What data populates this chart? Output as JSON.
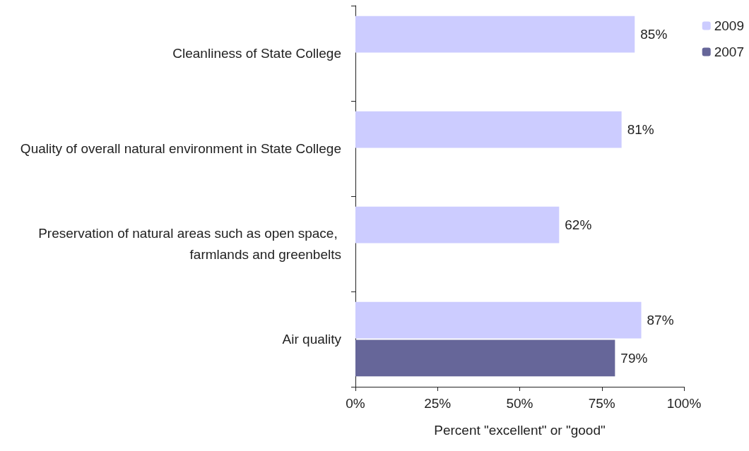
{
  "chart_data": {
    "type": "bar",
    "orientation": "horizontal",
    "xlabel": "Percent \"excellent\" or \"good\"",
    "categories": [
      "Cleanliness of State College",
      "Quality of overall natural environment in State College",
      "Preservation of natural areas such as open space, farmlands and greenbelts",
      "Air quality"
    ],
    "series": [
      {
        "name": "2009",
        "color": "#ccccff",
        "values": [
          85,
          81,
          62,
          87
        ],
        "value_labels": [
          "85%",
          "81%",
          "62%",
          "87%"
        ]
      },
      {
        "name": "2007",
        "color": "#666699",
        "values": [
          null,
          null,
          null,
          79
        ],
        "value_labels": [
          null,
          null,
          null,
          "79%"
        ]
      }
    ],
    "xlim": [
      0,
      100
    ],
    "xticks": [
      {
        "value": 0,
        "label": "0%"
      },
      {
        "value": 25,
        "label": "25%"
      },
      {
        "value": 50,
        "label": "50%"
      },
      {
        "value": 75,
        "label": "75%"
      },
      {
        "value": 100,
        "label": "100%"
      }
    ],
    "grid": false,
    "legend": "top right"
  }
}
